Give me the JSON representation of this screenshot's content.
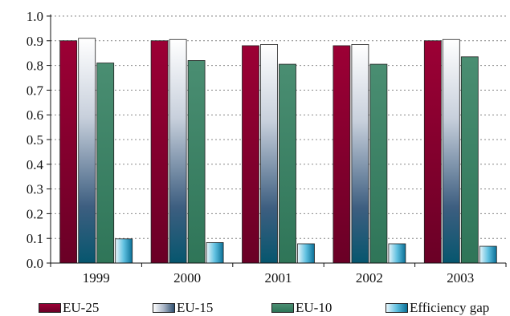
{
  "chart_data": {
    "type": "bar",
    "title": "",
    "xlabel": "",
    "ylabel": "",
    "categories": [
      "1999",
      "2000",
      "2001",
      "2002",
      "2003"
    ],
    "ylim": [
      0,
      1.0
    ],
    "yticks": [
      "0.0",
      "0.1",
      "0.2",
      "0.3",
      "0.4",
      "0.5",
      "0.6",
      "0.7",
      "0.8",
      "0.9",
      "1.0"
    ],
    "grid": "horizontal dotted",
    "legend_position": "bottom",
    "series": [
      {
        "name": "EU-25",
        "color": "#8b0030",
        "values": [
          0.9,
          0.9,
          0.88,
          0.88,
          0.9
        ]
      },
      {
        "name": "EU-15",
        "color": "#c8d0dc",
        "values": [
          0.91,
          0.905,
          0.885,
          0.885,
          0.905
        ]
      },
      {
        "name": "EU-10",
        "color": "#3d8566",
        "values": [
          0.81,
          0.82,
          0.805,
          0.805,
          0.835
        ]
      },
      {
        "name": "Efficiency gap",
        "color": "#3aa6cc",
        "values": [
          0.098,
          0.083,
          0.078,
          0.078,
          0.068
        ]
      }
    ]
  }
}
